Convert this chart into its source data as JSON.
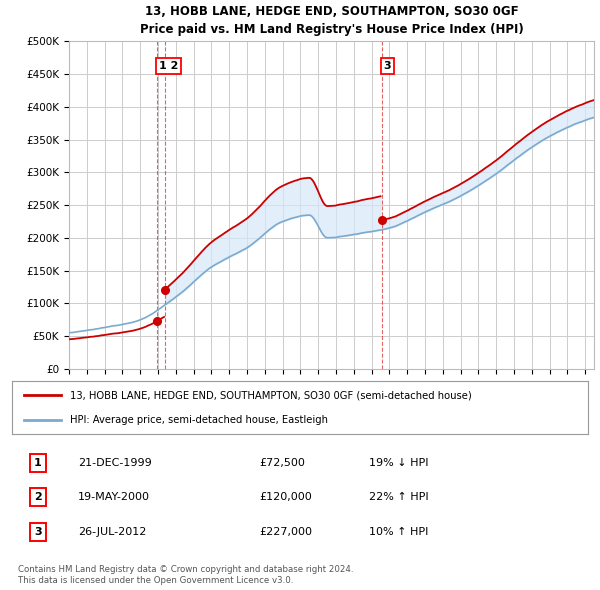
{
  "title": "13, HOBB LANE, HEDGE END, SOUTHAMPTON, SO30 0GF",
  "subtitle": "Price paid vs. HM Land Registry's House Price Index (HPI)",
  "ylabel_ticks": [
    "£0",
    "£50K",
    "£100K",
    "£150K",
    "£200K",
    "£250K",
    "£300K",
    "£350K",
    "£400K",
    "£450K",
    "£500K"
  ],
  "ytick_vals": [
    0,
    50000,
    100000,
    150000,
    200000,
    250000,
    300000,
    350000,
    400000,
    450000,
    500000
  ],
  "ylim": [
    0,
    500000
  ],
  "xlim_start": 1995.0,
  "xlim_end": 2024.5,
  "legend_line1": "13, HOBB LANE, HEDGE END, SOUTHAMPTON, SO30 0GF (semi-detached house)",
  "legend_line2": "HPI: Average price, semi-detached house, Eastleigh",
  "sale_color": "#cc0000",
  "hpi_color": "#7aaad0",
  "fill_color": "#d6e8f7",
  "transaction1_date": "21-DEC-1999",
  "transaction1_price": "£72,500",
  "transaction1_hpi": "19% ↓ HPI",
  "transaction1_x": 1999.97,
  "transaction1_y": 72500,
  "transaction2_date": "19-MAY-2000",
  "transaction2_price": "£120,000",
  "transaction2_hpi": "22% ↑ HPI",
  "transaction2_x": 2000.38,
  "transaction2_y": 120000,
  "transaction3_date": "26-JUL-2012",
  "transaction3_price": "£227,000",
  "transaction3_hpi": "10% ↑ HPI",
  "transaction3_x": 2012.57,
  "transaction3_y": 227000,
  "footnote": "Contains HM Land Registry data © Crown copyright and database right 2024.\nThis data is licensed under the Open Government Licence v3.0.",
  "background_color": "#ffffff",
  "grid_color": "#cccccc"
}
